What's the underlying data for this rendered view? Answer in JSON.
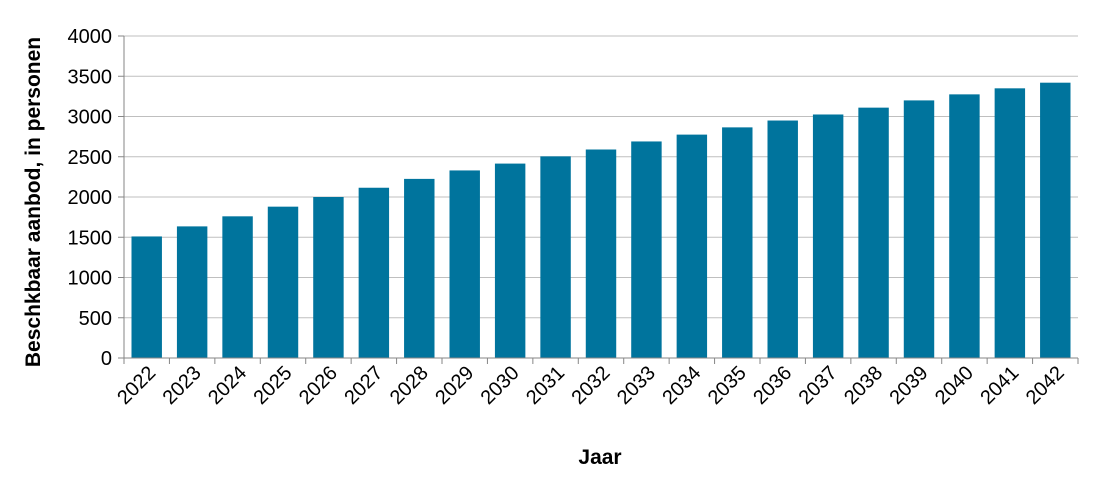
{
  "chart_data": {
    "type": "bar",
    "title": "",
    "xlabel": "Jaar",
    "ylabel": "Beschkbaar aanbod, in personen",
    "categories": [
      "2022",
      "2023",
      "2024",
      "2025",
      "2026",
      "2027",
      "2028",
      "2029",
      "2030",
      "2031",
      "2032",
      "2033",
      "2034",
      "2035",
      "2036",
      "2037",
      "2038",
      "2039",
      "2040",
      "2041",
      "2042"
    ],
    "values": [
      1510,
      1635,
      1760,
      1880,
      2000,
      2115,
      2225,
      2330,
      2415,
      2505,
      2590,
      2690,
      2775,
      2865,
      2950,
      3025,
      3110,
      3200,
      3275,
      3350,
      3420
    ],
    "ylim": [
      0,
      4000
    ],
    "yticks": [
      0,
      500,
      1000,
      1500,
      2000,
      2500,
      3000,
      3500,
      4000
    ],
    "grid": true,
    "legend": "none",
    "colors": {
      "bar": "#00749d",
      "grid": "#bfbfbf",
      "axis": "#868686"
    }
  }
}
